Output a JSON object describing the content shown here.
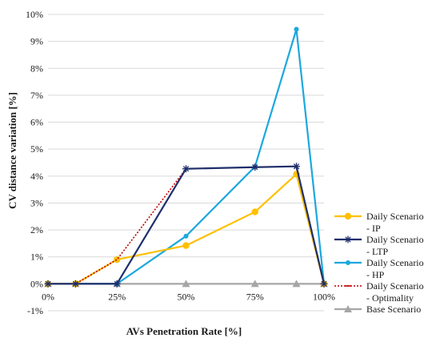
{
  "chart_data": {
    "type": "line",
    "xlabel": "AVs Penetration Rate [%]",
    "ylabel": "CV distance variation [%]",
    "xlim": [
      0,
      100
    ],
    "ylim": [
      -1,
      10
    ],
    "x_ticks": [
      0,
      25,
      50,
      75,
      100
    ],
    "x_tick_labels": [
      "0%",
      "25%",
      "50%",
      "75%",
      "100%"
    ],
    "y_ticks": [
      -1,
      0,
      1,
      2,
      3,
      4,
      5,
      6,
      7,
      8,
      9,
      10
    ],
    "y_tick_labels": [
      "-1%",
      "0%",
      "1%",
      "2%",
      "3%",
      "4%",
      "5%",
      "6%",
      "7%",
      "8%",
      "9%",
      "10%"
    ],
    "grid": "horizontal",
    "legend_position": "right",
    "series": [
      {
        "name": "Daily Scenario - IP",
        "legend_lines": [
          "Daily Scenario",
          "- IP"
        ],
        "color": "#FFC000",
        "marker": "circle",
        "dash": "solid",
        "points": [
          [
            0,
            0
          ],
          [
            10,
            0
          ],
          [
            25,
            0.9
          ],
          [
            50,
            1.42
          ],
          [
            75,
            2.67
          ],
          [
            90,
            4.07
          ],
          [
            100,
            0
          ]
        ]
      },
      {
        "name": "Daily Scenario - LTP",
        "legend_lines": [
          "Daily Scenario",
          "- LTP"
        ],
        "color": "#1F2F6B",
        "marker": "asterisk",
        "dash": "solid",
        "points": [
          [
            0,
            0
          ],
          [
            10,
            0
          ],
          [
            25,
            0
          ],
          [
            50,
            4.27
          ],
          [
            75,
            4.33
          ],
          [
            90,
            4.36
          ],
          [
            100,
            0
          ]
        ]
      },
      {
        "name": "Daily Scenario - HP",
        "legend_lines": [
          "Daily Scenario",
          "- HP"
        ],
        "color": "#1CA8DD",
        "marker": "small-circle",
        "dash": "solid",
        "points": [
          [
            0,
            0
          ],
          [
            10,
            0
          ],
          [
            25,
            0
          ],
          [
            50,
            1.77
          ],
          [
            75,
            4.35
          ],
          [
            90,
            9.45
          ],
          [
            100,
            0
          ]
        ]
      },
      {
        "name": "Daily Scenario - Optimality",
        "legend_lines": [
          "Daily Scenario",
          "- Optimality"
        ],
        "color": "#C00000",
        "marker": "dash",
        "dash": "dotted",
        "points": [
          [
            0,
            0
          ],
          [
            10,
            0
          ],
          [
            25,
            0.9
          ],
          [
            50,
            4.27
          ],
          [
            75,
            4.33
          ],
          [
            90,
            4.36
          ],
          [
            100,
            0
          ]
        ]
      },
      {
        "name": "Base Scenario",
        "legend_lines": [
          "Base Scenario"
        ],
        "color": "#A6A6A6",
        "marker": "triangle",
        "dash": "solid",
        "points": [
          [
            0,
            0
          ],
          [
            10,
            0
          ],
          [
            25,
            0
          ],
          [
            50,
            0
          ],
          [
            75,
            0
          ],
          [
            90,
            0
          ],
          [
            100,
            0
          ]
        ]
      }
    ]
  }
}
